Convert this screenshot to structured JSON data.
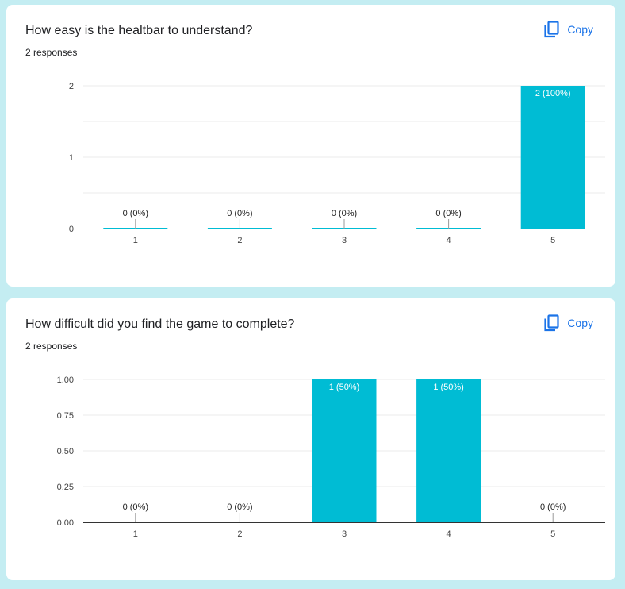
{
  "colors": {
    "bar": "#00bcd4",
    "accent": "#1a73e8",
    "background": "#c4edf2"
  },
  "questions": [
    {
      "title": "How easy is the healtbar to understand?",
      "responses": "2 responses",
      "copy_label": "Copy",
      "copy_icon": "copy-icon",
      "chart_data": {
        "type": "bar",
        "categories": [
          "1",
          "2",
          "3",
          "4",
          "5"
        ],
        "values": [
          0,
          0,
          0,
          0,
          2
        ],
        "data_labels": [
          "0 (0%)",
          "0 (0%)",
          "0 (0%)",
          "0 (0%)",
          "2 (100%)"
        ],
        "y_ticks": [
          "0",
          "1",
          "2"
        ],
        "ylim": [
          0,
          2
        ],
        "grid": true
      }
    },
    {
      "title": "How difficult did you find the game to complete?",
      "responses": "2 responses",
      "copy_label": "Copy",
      "copy_icon": "copy-icon",
      "chart_data": {
        "type": "bar",
        "categories": [
          "1",
          "2",
          "3",
          "4",
          "5"
        ],
        "values": [
          0,
          0,
          1,
          1,
          0
        ],
        "data_labels": [
          "0 (0%)",
          "0 (0%)",
          "1 (50%)",
          "1 (50%)",
          "0 (0%)"
        ],
        "y_ticks": [
          "0.00",
          "0.25",
          "0.50",
          "0.75",
          "1.00"
        ],
        "ylim": [
          0,
          1
        ],
        "grid": true
      }
    }
  ]
}
